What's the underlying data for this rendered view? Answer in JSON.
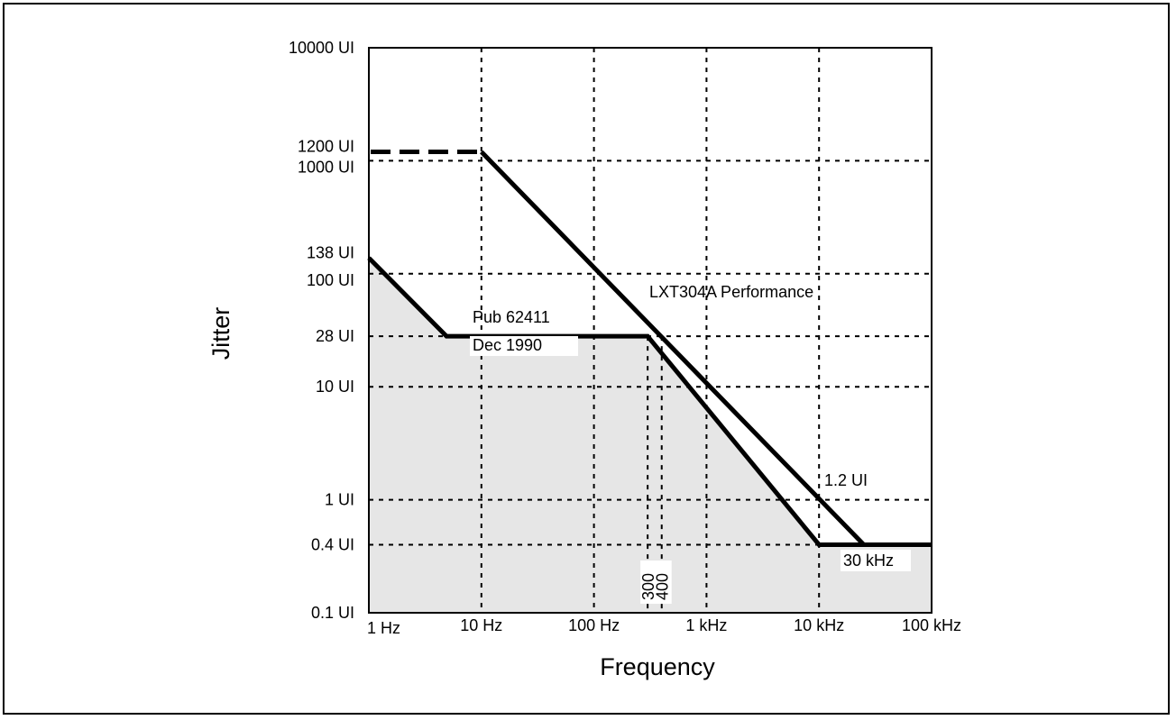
{
  "chart_data": {
    "type": "line",
    "xlabel": "Frequency",
    "ylabel": "Jitter",
    "x_scale": "log",
    "y_scale": "log",
    "xlim": [
      1,
      100000
    ],
    "ylim": [
      0.1,
      10000
    ],
    "grid": true,
    "x_ticks": [
      {
        "value": 1,
        "label": "1 Hz"
      },
      {
        "value": 10,
        "label": "10 Hz"
      },
      {
        "value": 100,
        "label": "100 Hz"
      },
      {
        "value": 1000,
        "label": "1 kHz"
      },
      {
        "value": 10000,
        "label": "10 kHz"
      },
      {
        "value": 100000,
        "label": "100 kHz"
      }
    ],
    "y_ticks": [
      {
        "value": 10000,
        "label": "10000 UI"
      },
      {
        "value": 1200,
        "label": "1200 UI"
      },
      {
        "value": 1000,
        "label": "1000 UI"
      },
      {
        "value": 138,
        "label": "138 UI"
      },
      {
        "value": 100,
        "label": "100 UI"
      },
      {
        "value": 28,
        "label": "28 UI"
      },
      {
        "value": 10,
        "label": "10 UI"
      },
      {
        "value": 1,
        "label": "1 UI"
      },
      {
        "value": 0.4,
        "label": "0.4 UI"
      },
      {
        "value": 0.1,
        "label": "0.1 UI"
      }
    ],
    "extra_vlines": [
      {
        "value": 300,
        "label": "300"
      },
      {
        "value": 400,
        "label": "400"
      }
    ],
    "series": [
      {
        "name": "Pub 62411 Dec 1990",
        "label_lines": [
          "Pub 62411",
          "Dec 1990"
        ],
        "fill": true,
        "points": [
          [
            1,
            138
          ],
          [
            4.9,
            28
          ],
          [
            300,
            28
          ],
          [
            10000,
            0.4
          ],
          [
            100000,
            0.4
          ]
        ]
      },
      {
        "name": "LXT304A Performance",
        "points": [
          [
            10,
            1200
          ],
          [
            10,
            1200
          ],
          [
            25000,
            0.4
          ],
          [
            100000,
            0.4
          ]
        ],
        "dashed_segment": [
          [
            1,
            1200
          ],
          [
            10,
            1200
          ]
        ]
      }
    ],
    "annotations": [
      {
        "text": "1.2 UI",
        "x": 10000,
        "y": 1.2
      },
      {
        "text": "30 kHz",
        "x": 30000,
        "y": 0.4
      }
    ],
    "colors": {
      "fill": "#e6e6e6",
      "line": "#000000",
      "grid": "#000000"
    }
  }
}
